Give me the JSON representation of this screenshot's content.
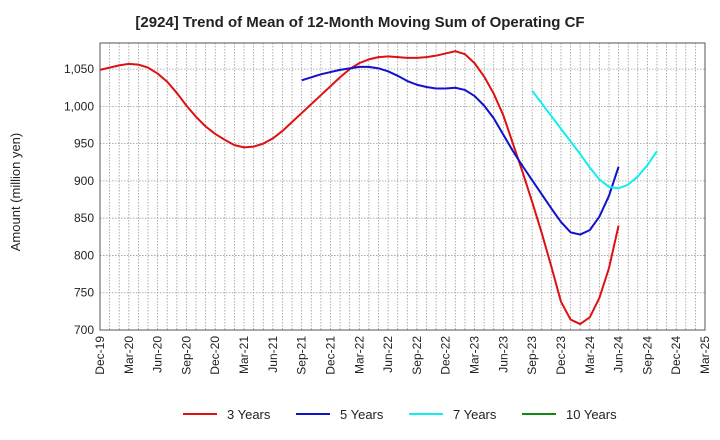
{
  "chart_data": {
    "type": "line",
    "title": "[2924]  Trend of Mean of 12-Month Moving Sum of Operating CF",
    "xlabel": "",
    "ylabel": "Amount (million yen)",
    "ylim": [
      700,
      1085
    ],
    "yticks": [
      700,
      750,
      800,
      850,
      900,
      950,
      1000,
      1050
    ],
    "ytick_labels": [
      "700",
      "750",
      "800",
      "850",
      "900",
      "950",
      "1,000",
      "1,050"
    ],
    "x_months": [
      "Dec-19",
      "Jan-20",
      "Feb-20",
      "Mar-20",
      "Apr-20",
      "May-20",
      "Jun-20",
      "Jul-20",
      "Aug-20",
      "Sep-20",
      "Oct-20",
      "Nov-20",
      "Dec-20",
      "Jan-21",
      "Feb-21",
      "Mar-21",
      "Apr-21",
      "May-21",
      "Jun-21",
      "Jul-21",
      "Aug-21",
      "Sep-21",
      "Oct-21",
      "Nov-21",
      "Dec-21",
      "Jan-22",
      "Feb-22",
      "Mar-22",
      "Apr-22",
      "May-22",
      "Jun-22",
      "Jul-22",
      "Aug-22",
      "Sep-22",
      "Oct-22",
      "Nov-22",
      "Dec-22",
      "Jan-23",
      "Feb-23",
      "Mar-23",
      "Apr-23",
      "May-23",
      "Jun-23",
      "Jul-23",
      "Aug-23",
      "Sep-23",
      "Oct-23",
      "Nov-23",
      "Dec-23",
      "Jan-24",
      "Feb-24",
      "Mar-24",
      "Apr-24",
      "May-24",
      "Jun-24",
      "Jul-24",
      "Aug-24",
      "Sep-24",
      "Oct-24",
      "Nov-24",
      "Dec-24",
      "Jan-25",
      "Feb-25",
      "Mar-25"
    ],
    "x_tick_labels": [
      "Dec-19",
      "Mar-20",
      "Jun-20",
      "Sep-20",
      "Dec-20",
      "Mar-21",
      "Jun-21",
      "Sep-21",
      "Dec-21",
      "Mar-22",
      "Jun-22",
      "Sep-22",
      "Dec-22",
      "Mar-23",
      "Jun-23",
      "Sep-23",
      "Dec-23",
      "Mar-24",
      "Jun-24",
      "Sep-24",
      "Dec-24",
      "Mar-25"
    ],
    "grid": true,
    "legend_position": "bottom",
    "series": [
      {
        "name": "3 Years",
        "color": "#dd1111",
        "start": "Dec-19",
        "values": [
          1049,
          1052,
          1055,
          1057,
          1056,
          1052,
          1044,
          1033,
          1018,
          1001,
          986,
          973,
          963,
          955,
          948,
          945,
          946,
          950,
          957,
          967,
          979,
          991,
          1003,
          1015,
          1027,
          1039,
          1050,
          1058,
          1063,
          1066,
          1067,
          1066,
          1065,
          1065,
          1066,
          1068,
          1071,
          1074,
          1070,
          1058,
          1040,
          1017,
          988,
          950,
          912,
          872,
          830,
          785,
          738,
          714,
          708,
          717,
          743,
          783,
          840
        ]
      },
      {
        "name": "5 Years",
        "color": "#1111cc",
        "start": "Sep-21",
        "values": [
          1035,
          1039,
          1043,
          1046,
          1049,
          1051,
          1053,
          1053,
          1051,
          1047,
          1041,
          1034,
          1029,
          1026,
          1024,
          1024,
          1025,
          1022,
          1014,
          1001,
          984,
          962,
          940,
          920,
          901,
          882,
          863,
          845,
          831,
          828,
          834,
          852,
          880,
          919
        ]
      },
      {
        "name": "7 Years",
        "color": "#11eeee",
        "start": "Sep-23",
        "values": [
          1021,
          1004,
          987,
          970,
          953,
          936,
          918,
          902,
          892,
          890,
          895,
          906,
          921,
          940
        ]
      },
      {
        "name": "10 Years",
        "color": "#118811",
        "start": "Sep-24",
        "values": []
      }
    ]
  }
}
